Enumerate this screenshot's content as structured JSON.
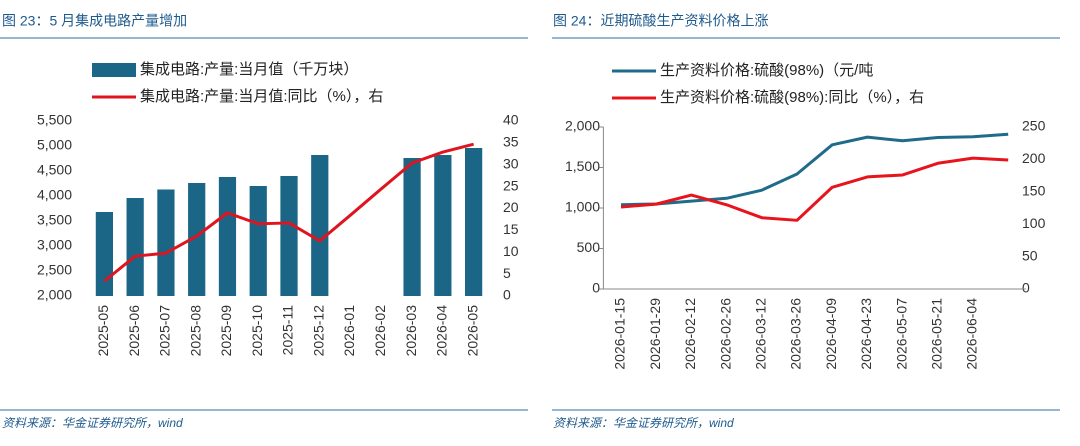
{
  "chart_data": [
    {
      "type": "bar",
      "title": "图 23：5 月集成电路产量增加",
      "source": "资料来源：华金证券研究所，wind",
      "categories": [
        "2025-05",
        "2025-06",
        "2025-07",
        "2025-08",
        "2025-09",
        "2025-10",
        "2025-11",
        "2025-12",
        "2026-01",
        "2026-02",
        "2026-03",
        "2026-04",
        "2026-05"
      ],
      "series": [
        {
          "name": "集成电路:产量:当月值（千万块）",
          "type": "bar",
          "color": "#1b6687",
          "values": [
            3680,
            3960,
            4130,
            4260,
            4380,
            4200,
            4400,
            4820,
            null,
            null,
            4760,
            4820,
            4960
          ]
        },
        {
          "name": "集成电路:产量:当月值:同比（%），右",
          "type": "line",
          "axis": "y2",
          "color": "#e0141e",
          "values": [
            3.4,
            9.1,
            9.8,
            13.7,
            19.0,
            16.5,
            16.7,
            12.6,
            18.5,
            24.5,
            30.4,
            32.9,
            34.7
          ]
        }
      ],
      "ylim": [
        2000,
        5500
      ],
      "yticks": [
        {
          "value": 2000,
          "label": "2,000"
        },
        {
          "value": 2500,
          "label": "2,500"
        },
        {
          "value": 3000,
          "label": "3,000"
        },
        {
          "value": 3500,
          "label": "3,500"
        },
        {
          "value": 4000,
          "label": "4,000"
        },
        {
          "value": 4500,
          "label": "4,500"
        },
        {
          "value": 5000,
          "label": "5,000"
        },
        {
          "value": 5500,
          "label": "5,500"
        }
      ],
      "y2lim": [
        0,
        40
      ],
      "y2ticks": [
        0,
        5,
        10,
        15,
        20,
        25,
        30,
        35,
        40
      ]
    },
    {
      "type": "line",
      "title": "图 24：近期硫酸生产资料价格上涨",
      "source": "资料来源：华金证券研究所，wind",
      "categories": [
        "2026-01-15",
        "2026-01-29",
        "2026-02-12",
        "2026-02-26",
        "2026-03-12",
        "2026-03-26",
        "2026-04-09",
        "2026-04-23",
        "2026-05-07",
        "2026-05-21",
        "2026-06-04",
        null
      ],
      "series": [
        {
          "name": "生产资料价格:硫酸(98%)（元/吨",
          "type": "line",
          "color": "#1f6b8a",
          "values": [
            1040,
            1050,
            1085,
            1120,
            1220,
            1420,
            1780,
            1875,
            1830,
            1870,
            1880,
            1910
          ]
        },
        {
          "name": "生产资料价格:硫酸(98%):同比（%），右",
          "type": "line",
          "axis": "y2",
          "color": "#e8141c",
          "values": [
            126.5,
            131,
            145,
            130,
            110,
            106,
            157,
            173,
            176,
            194,
            202,
            199
          ]
        }
      ],
      "ylim": [
        0,
        2000
      ],
      "yticks": [
        0,
        500,
        {
          "value": 1000,
          "label": "1,000"
        },
        {
          "value": 1500,
          "label": "1,500"
        },
        {
          "value": 2000,
          "label": "2,000"
        }
      ],
      "y2lim": [
        0,
        250
      ],
      "y2ticks": [
        0,
        50,
        100,
        150,
        200,
        250
      ]
    }
  ]
}
